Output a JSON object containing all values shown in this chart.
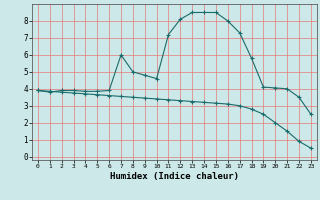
{
  "title": "",
  "xlabel": "Humidex (Indice chaleur)",
  "bg_color": "#cce8e8",
  "grid_color": "#e87878",
  "line_color": "#1a6b6b",
  "xlim": [
    -0.5,
    23.5
  ],
  "ylim": [
    -0.2,
    9.0
  ],
  "xticks": [
    0,
    1,
    2,
    3,
    4,
    5,
    6,
    7,
    8,
    9,
    10,
    11,
    12,
    13,
    14,
    15,
    16,
    17,
    18,
    19,
    20,
    21,
    22,
    23
  ],
  "yticks": [
    0,
    1,
    2,
    3,
    4,
    5,
    6,
    7,
    8
  ],
  "curve1_x": [
    0,
    1,
    2,
    3,
    4,
    5,
    6,
    7,
    8,
    9,
    10,
    11,
    12,
    13,
    14,
    15,
    16,
    17,
    18,
    19,
    20,
    21,
    22,
    23
  ],
  "curve1_y": [
    3.9,
    3.8,
    3.9,
    3.9,
    3.85,
    3.85,
    3.9,
    6.0,
    5.0,
    4.8,
    4.6,
    7.2,
    8.1,
    8.5,
    8.5,
    8.5,
    8.0,
    7.3,
    5.8,
    4.1,
    4.05,
    4.0,
    3.5,
    2.5
  ],
  "curve2_x": [
    0,
    1,
    2,
    3,
    4,
    5,
    6,
    7,
    8,
    9,
    10,
    11,
    12,
    13,
    14,
    15,
    16,
    17,
    18,
    19,
    20,
    21,
    22,
    23
  ],
  "curve2_y": [
    3.9,
    3.85,
    3.8,
    3.75,
    3.7,
    3.65,
    3.6,
    3.55,
    3.5,
    3.45,
    3.4,
    3.35,
    3.3,
    3.25,
    3.2,
    3.15,
    3.1,
    3.0,
    2.8,
    2.5,
    2.0,
    1.5,
    0.9,
    0.5
  ]
}
